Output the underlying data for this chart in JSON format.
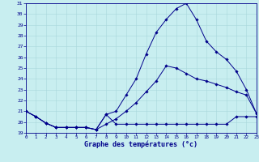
{
  "title": "Graphe des températures (°c)",
  "bg_color": "#c8eef0",
  "line_color": "#00008b",
  "grid_color": "#a8d8dc",
  "hours": [
    0,
    1,
    2,
    3,
    4,
    5,
    6,
    7,
    8,
    9,
    10,
    11,
    12,
    13,
    14,
    15,
    16,
    17,
    18,
    19,
    20,
    21,
    22,
    23
  ],
  "line_min": [
    21.0,
    20.5,
    19.9,
    19.5,
    19.5,
    19.5,
    19.5,
    19.3,
    20.7,
    19.8,
    19.8,
    19.8,
    19.8,
    19.8,
    19.8,
    19.8,
    19.8,
    19.8,
    19.8,
    19.8,
    19.8,
    20.5,
    20.5,
    20.5
  ],
  "line_mid": [
    21.0,
    20.5,
    19.9,
    19.5,
    19.5,
    19.5,
    19.5,
    19.3,
    19.8,
    20.3,
    21.0,
    21.8,
    22.8,
    23.8,
    25.2,
    25.0,
    24.5,
    24.0,
    23.8,
    23.5,
    23.2,
    22.8,
    22.5,
    20.8
  ],
  "line_max": [
    21.0,
    20.5,
    19.9,
    19.5,
    19.5,
    19.5,
    19.5,
    19.3,
    20.7,
    21.0,
    22.5,
    24.0,
    26.3,
    28.3,
    29.5,
    30.5,
    31.0,
    29.5,
    27.5,
    26.5,
    25.8,
    24.7,
    23.0,
    20.8
  ],
  "ylim": [
    19,
    31
  ],
  "yticks": [
    19,
    20,
    21,
    22,
    23,
    24,
    25,
    26,
    27,
    28,
    29,
    30,
    31
  ],
  "xlim": [
    0,
    23
  ]
}
